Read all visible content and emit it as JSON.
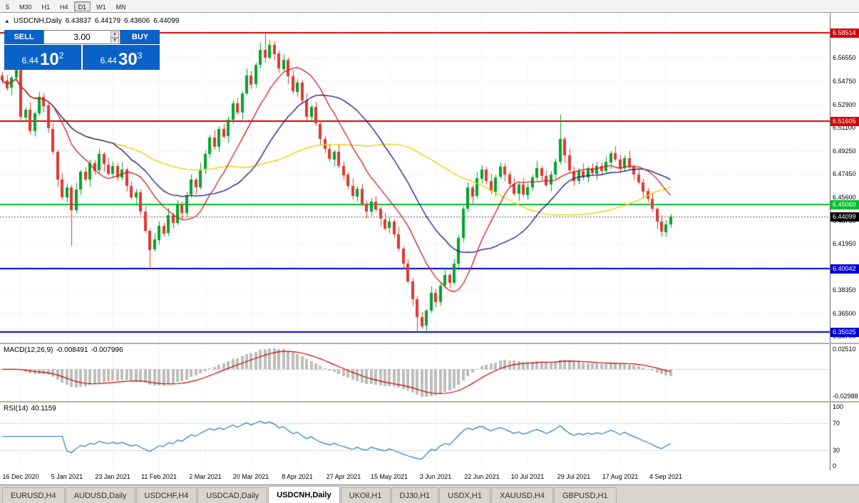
{
  "toolbar": {
    "timeframes": [
      {
        "label": "5"
      },
      {
        "label": "M30"
      },
      {
        "label": "H1"
      },
      {
        "label": "H4"
      },
      {
        "label": "D1",
        "active": true
      },
      {
        "label": "W1"
      },
      {
        "label": "MN"
      }
    ]
  },
  "quote_header": {
    "collapse": "▲",
    "symbol": "USDCNH,Daily",
    "open": "6.43837",
    "high": "6.44179",
    "low": "6.43606",
    "close": "6.44099"
  },
  "trade_panel": {
    "sell_label": "SELL",
    "buy_label": "BUY",
    "volume": "3.00",
    "spin_up": "▲",
    "spin_down": "▼",
    "sell_price": {
      "base": "6.44",
      "big": "10",
      "sup": "2"
    },
    "buy_price": {
      "base": "6.44",
      "big": "30",
      "sup": "3"
    }
  },
  "levels": [
    {
      "label": "6.58514",
      "price": 6.58514,
      "color": "#d40000"
    },
    {
      "label": "6.51605",
      "price": 6.51605,
      "color": "#d40000"
    },
    {
      "label": "6.45060",
      "price": 6.4506,
      "color": "#00c228"
    },
    {
      "label": "6.40042",
      "price": 6.40042,
      "color": "#0000d8"
    },
    {
      "label": "6.35025",
      "price": 6.35025,
      "color": "#0000d8"
    }
  ],
  "current_price": {
    "label": "6.44099",
    "price": 6.44099,
    "color": "#000000"
  },
  "macd_panel": {
    "title": "MACD(12,26,9)",
    "macd_value": "-0.008491",
    "signal_value": "-0.007996",
    "axis_labels": [
      "0.02510",
      "-0.02988"
    ]
  },
  "rsi_panel": {
    "title": "RSI(14)",
    "value": "40.1159",
    "axis_labels": [
      "100",
      "70",
      "30",
      "0"
    ],
    "level_lines": [
      70,
      30
    ]
  },
  "tabs": [
    {
      "label": "EURUSD,H4"
    },
    {
      "label": "AUDUSD,Daily"
    },
    {
      "label": "USDCHF,H4"
    },
    {
      "label": "USDCAD,Daily"
    },
    {
      "label": "USDCNH,Daily",
      "active": true
    },
    {
      "label": "UKOil,H1"
    },
    {
      "label": "DJ30,H1"
    },
    {
      "label": "USDX,H1"
    },
    {
      "label": "XAUUSD,H4"
    },
    {
      "label": "GBPUSD,H1"
    }
  ],
  "chart_data": {
    "type": "candlestick",
    "symbol": "USDCNH",
    "timeframe": "Daily",
    "title": "USDCNH,Daily",
    "y_range": [
      6.342,
      6.601
    ],
    "y_tick_labels": [
      "6.56550",
      "6.54750",
      "6.52900",
      "6.51100",
      "6.49250",
      "6.47450",
      "6.45600",
      "6.43750",
      "6.41950",
      "6.40150",
      "6.38350",
      "6.36500",
      "6.34700"
    ],
    "x_labels": [
      "16 Dec 2020",
      "5 Jan 2021",
      "23 Jan 2021",
      "11 Feb 2021",
      "2 Mar 2021",
      "20 Mar 2021",
      "8 Apr 2021",
      "27 Apr 2021",
      "15 May 2021",
      "3 Jun 2021",
      "22 Jun 2021",
      "10 Jul 2021",
      "29 Jul 2021",
      "17 Aug 2021",
      "4 Sep 2021"
    ],
    "label_start": 4,
    "label_step": 10,
    "total_slots": 180,
    "first_open": 6.552,
    "closes": [
      6.548,
      6.542,
      6.55,
      6.556,
      6.519,
      6.525,
      6.508,
      6.522,
      6.535,
      6.528,
      6.51,
      6.492,
      6.47,
      6.456,
      6.464,
      6.446,
      6.462,
      6.476,
      6.47,
      6.483,
      6.477,
      6.49,
      6.482,
      6.475,
      6.481,
      6.472,
      6.478,
      6.465,
      6.456,
      6.46,
      6.445,
      6.43,
      6.415,
      6.423,
      6.434,
      6.428,
      6.442,
      6.436,
      6.45,
      6.444,
      6.458,
      6.47,
      6.464,
      6.478,
      6.49,
      6.503,
      6.496,
      6.51,
      6.504,
      6.517,
      6.53,
      6.523,
      6.538,
      6.552,
      6.545,
      6.56,
      6.572,
      6.566,
      6.576,
      6.569,
      6.557,
      6.564,
      6.551,
      6.539,
      6.546,
      6.532,
      6.519,
      6.527,
      6.514,
      6.502,
      6.494,
      6.486,
      6.492,
      6.481,
      6.474,
      6.465,
      6.457,
      6.463,
      6.451,
      6.445,
      6.453,
      6.447,
      6.439,
      6.432,
      6.437,
      6.427,
      6.416,
      6.404,
      6.39,
      6.376,
      6.362,
      6.355,
      6.367,
      6.381,
      6.374,
      6.387,
      6.395,
      6.389,
      6.404,
      6.424,
      6.447,
      6.464,
      6.457,
      6.471,
      6.478,
      6.469,
      6.461,
      6.472,
      6.48,
      6.474,
      6.467,
      6.459,
      6.466,
      6.458,
      6.464,
      6.472,
      6.479,
      6.473,
      6.466,
      6.474,
      6.484,
      6.502,
      6.489,
      6.477,
      6.469,
      6.477,
      6.472,
      6.479,
      6.475,
      6.481,
      6.477,
      6.484,
      6.491,
      6.486,
      6.479,
      6.487,
      6.48,
      6.474,
      6.468,
      6.461,
      6.455,
      6.447,
      6.437,
      6.429,
      6.435,
      6.44099
    ],
    "wick_cycle": [
      0.003,
      0.0052,
      0.002,
      0.0065,
      0.004,
      0.0026,
      0.0072,
      0.0022,
      0.0048,
      0.0035
    ],
    "wick_overrides": {
      "15": {
        "l": 6.418
      },
      "32": {
        "l": 6.3995
      },
      "57": {
        "h": 6.5851
      },
      "90": {
        "l": 6.3503
      },
      "121": {
        "h": 6.521
      },
      "143": {
        "l": 6.4252
      }
    },
    "ma_periods": [
      12,
      25,
      50
    ],
    "macd_params": [
      12,
      26,
      9
    ],
    "rsi_period": 14,
    "colors": {
      "up": "#00a42a",
      "down": "#dd3a32",
      "ma_fast": "#cc2020",
      "ma_mid": "#14148c",
      "ma_slow": "#e6d400",
      "macd_hist": "#bdbdbd",
      "macd_signal": "#cc0000",
      "rsi": "#2779bd",
      "grid": "#e3e3e3"
    }
  }
}
